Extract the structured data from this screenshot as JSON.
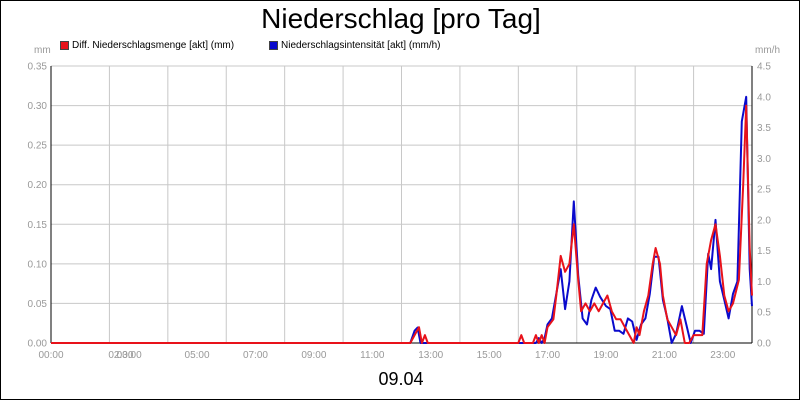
{
  "header": {
    "title": "Niederschlag [pro Tag]",
    "date": "09.04"
  },
  "colors": {
    "series_red": "#e8121a",
    "series_blue": "#0a0acc",
    "grid": "#c8c8c8",
    "axis": "#000000",
    "tick_text": "#999999"
  },
  "chart_data": {
    "type": "line",
    "title": "Niederschlag [pro Tag]",
    "xlabel": "09.04",
    "ylabel_left": "mm",
    "ylabel_right": "mm/h",
    "ylim_left": [
      0,
      0.35
    ],
    "ylim_right": [
      0,
      4.5
    ],
    "left_ticks": [
      "0.00",
      "0.05",
      "0.10",
      "0.15",
      "0.20",
      "0.25",
      "0.30",
      "0.35"
    ],
    "right_ticks": [
      "0.0",
      "0.5",
      "1.0",
      "1.5",
      "2.0",
      "2.5",
      "3.0",
      "3.5",
      "4.0",
      "4.5"
    ],
    "x_tick_labels": [
      {
        "h": 0,
        "label": "00:00"
      },
      {
        "h": 2,
        "label": "02:00"
      },
      {
        "h": 3,
        "label": "03:00"
      },
      {
        "h": 5,
        "label": "05:00"
      },
      {
        "h": 7,
        "label": "07:00"
      },
      {
        "h": 9,
        "label": "09:00"
      },
      {
        "h": 11,
        "label": "11:00"
      },
      {
        "h": 13,
        "label": "13:00"
      },
      {
        "h": 15,
        "label": "15:00"
      },
      {
        "h": 17,
        "label": "17:00"
      },
      {
        "h": 19,
        "label": "19:00"
      },
      {
        "h": 21,
        "label": "21:00"
      },
      {
        "h": 23,
        "label": "23:00"
      }
    ],
    "x_grid_hours": [
      0,
      2,
      4,
      6,
      8,
      10,
      12,
      14,
      16,
      18,
      20,
      22
    ],
    "legend_position": "top-left",
    "grid": true,
    "series": [
      {
        "name": "Diff. Niederschlagsmenge [akt] (mm)",
        "axis": "left",
        "color": "#e8121a",
        "points": [
          [
            0,
            0
          ],
          [
            12.3,
            0
          ],
          [
            12.45,
            0.01
          ],
          [
            12.6,
            0.02
          ],
          [
            12.7,
            0
          ],
          [
            12.8,
            0.01
          ],
          [
            12.9,
            0
          ],
          [
            16.0,
            0
          ],
          [
            16.1,
            0.01
          ],
          [
            16.2,
            0
          ],
          [
            16.5,
            0
          ],
          [
            16.6,
            0.01
          ],
          [
            16.7,
            0
          ],
          [
            16.8,
            0.01
          ],
          [
            16.9,
            0
          ],
          [
            17.0,
            0.02
          ],
          [
            17.2,
            0.03
          ],
          [
            17.3,
            0.06
          ],
          [
            17.45,
            0.11
          ],
          [
            17.6,
            0.09
          ],
          [
            17.75,
            0.1
          ],
          [
            17.9,
            0.15
          ],
          [
            18.05,
            0.08
          ],
          [
            18.15,
            0.04
          ],
          [
            18.3,
            0.05
          ],
          [
            18.45,
            0.04
          ],
          [
            18.6,
            0.05
          ],
          [
            18.75,
            0.04
          ],
          [
            18.9,
            0.05
          ],
          [
            19.05,
            0.06
          ],
          [
            19.2,
            0.04
          ],
          [
            19.35,
            0.03
          ],
          [
            19.5,
            0.03
          ],
          [
            19.65,
            0.02
          ],
          [
            19.8,
            0.01
          ],
          [
            19.95,
            0.0
          ],
          [
            20.05,
            0.02
          ],
          [
            20.15,
            0.01
          ],
          [
            20.3,
            0.04
          ],
          [
            20.45,
            0.06
          ],
          [
            20.6,
            0.1
          ],
          [
            20.7,
            0.12
          ],
          [
            20.85,
            0.1
          ],
          [
            20.95,
            0.06
          ],
          [
            21.1,
            0.03
          ],
          [
            21.25,
            0.02
          ],
          [
            21.4,
            0.01
          ],
          [
            21.55,
            0.03
          ],
          [
            21.7,
            0.0
          ],
          [
            21.85,
            0.0
          ],
          [
            22.0,
            0.01
          ],
          [
            22.15,
            0.01
          ],
          [
            22.3,
            0.01
          ],
          [
            22.45,
            0.1
          ],
          [
            22.6,
            0.13
          ],
          [
            22.75,
            0.15
          ],
          [
            22.9,
            0.11
          ],
          [
            23.05,
            0.06
          ],
          [
            23.2,
            0.04
          ],
          [
            23.35,
            0.05
          ],
          [
            23.55,
            0.08
          ],
          [
            23.7,
            0.2
          ],
          [
            23.8,
            0.3
          ],
          [
            23.92,
            0.12
          ],
          [
            24.0,
            0.06
          ]
        ]
      },
      {
        "name": "Niederschlagsintensität [akt] (mm/h)",
        "axis": "right",
        "color": "#0a0acc",
        "points": [
          [
            0,
            0
          ],
          [
            12.3,
            0
          ],
          [
            12.45,
            0.2
          ],
          [
            12.55,
            0.25
          ],
          [
            12.65,
            0
          ],
          [
            16.6,
            0
          ],
          [
            16.7,
            0.08
          ],
          [
            16.8,
            0
          ],
          [
            16.9,
            0.08
          ],
          [
            17.0,
            0.3
          ],
          [
            17.15,
            0.4
          ],
          [
            17.3,
            0.8
          ],
          [
            17.45,
            1.2
          ],
          [
            17.6,
            0.55
          ],
          [
            17.75,
            1.0
          ],
          [
            17.9,
            2.3
          ],
          [
            18.05,
            1.1
          ],
          [
            18.2,
            0.4
          ],
          [
            18.35,
            0.3
          ],
          [
            18.5,
            0.7
          ],
          [
            18.65,
            0.9
          ],
          [
            18.8,
            0.75
          ],
          [
            19.0,
            0.6
          ],
          [
            19.15,
            0.55
          ],
          [
            19.3,
            0.2
          ],
          [
            19.45,
            0.2
          ],
          [
            19.6,
            0.15
          ],
          [
            19.75,
            0.4
          ],
          [
            19.9,
            0.35
          ],
          [
            20.05,
            0.05
          ],
          [
            20.2,
            0.3
          ],
          [
            20.35,
            0.4
          ],
          [
            20.5,
            0.8
          ],
          [
            20.65,
            1.4
          ],
          [
            20.8,
            1.4
          ],
          [
            20.95,
            0.7
          ],
          [
            21.1,
            0.4
          ],
          [
            21.25,
            0.0
          ],
          [
            21.4,
            0.15
          ],
          [
            21.6,
            0.6
          ],
          [
            21.75,
            0.3
          ],
          [
            21.9,
            0.0
          ],
          [
            22.05,
            0.2
          ],
          [
            22.2,
            0.2
          ],
          [
            22.35,
            0.15
          ],
          [
            22.5,
            1.45
          ],
          [
            22.6,
            1.2
          ],
          [
            22.75,
            2.0
          ],
          [
            22.9,
            1.0
          ],
          [
            23.05,
            0.7
          ],
          [
            23.2,
            0.4
          ],
          [
            23.35,
            0.8
          ],
          [
            23.5,
            1.0
          ],
          [
            23.65,
            3.6
          ],
          [
            23.8,
            4.0
          ],
          [
            23.92,
            1.2
          ],
          [
            24.0,
            0.6
          ]
        ]
      }
    ]
  }
}
